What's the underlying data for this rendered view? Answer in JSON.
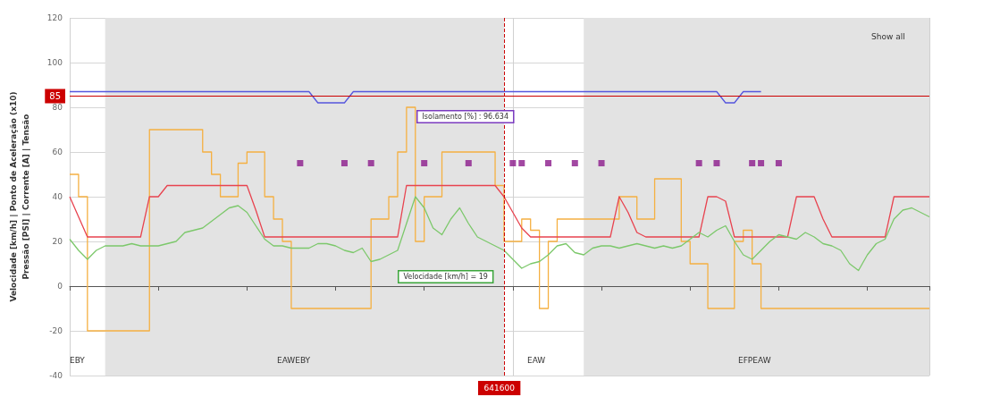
{
  "chart_data": {
    "type": "line",
    "ylabel": "Velocidade [km/h] | Ponto de Aceleração (x10)\nPressão [PSI] | Corrente [A] | Tensão",
    "categories": [
      null,
      null,
      null,
      null,
      null,
      null,
      null,
      null,
      null,
      null,
      null,
      null,
      null,
      null,
      null,
      null,
      null,
      null,
      null,
      null,
      null,
      null,
      null,
      null,
      null,
      null,
      null,
      null,
      null,
      null,
      null,
      null,
      null,
      null,
      null,
      null,
      null,
      null,
      null,
      null,
      null,
      null,
      null,
      null,
      null,
      null,
      null,
      null,
      null,
      null,
      null,
      null,
      null,
      null,
      null,
      null,
      null,
      null,
      null,
      null,
      null,
      null,
      null,
      null,
      null,
      null,
      null,
      null,
      null,
      null,
      null,
      null,
      null,
      null,
      null,
      null,
      null,
      null,
      null,
      null,
      null,
      null,
      null,
      null,
      null,
      null,
      null,
      null,
      null,
      null,
      null,
      null,
      null,
      null,
      null,
      null,
      null,
      null
    ],
    "series": [
      {
        "type": "step",
        "color": "#f5b041",
        "marker": "none",
        "values": [
          50,
          40,
          -20,
          -20,
          -20,
          -20,
          -20,
          -20,
          -20,
          70,
          70,
          70,
          70,
          70,
          70,
          60,
          50,
          40,
          40,
          55,
          60,
          60,
          40,
          30,
          20,
          -10,
          -10,
          -10,
          -10,
          -10,
          -10,
          -10,
          -10,
          -10,
          30,
          30,
          40,
          60,
          80,
          20,
          40,
          40,
          60,
          60,
          60,
          60,
          60,
          60,
          45,
          20,
          20,
          30,
          25,
          -10,
          20,
          30,
          30,
          30,
          30,
          30,
          30,
          30,
          40,
          40,
          30,
          30,
          48,
          48,
          48,
          20,
          10,
          10,
          -10,
          -10,
          -10,
          20,
          25,
          10,
          -10,
          -10,
          -10,
          -10,
          -10,
          -10,
          -10,
          -10,
          -10,
          -10,
          -10,
          -10,
          -10,
          -10,
          -10,
          -10,
          -10,
          -10,
          -10,
          -10
        ]
      },
      {
        "color": "#e8434f",
        "marker": "none",
        "values": [
          40,
          31,
          22,
          22,
          22,
          22,
          22,
          22,
          22,
          40,
          40,
          45,
          45,
          45,
          45,
          45,
          45,
          45,
          45,
          45,
          45,
          34,
          22,
          22,
          22,
          22,
          22,
          22,
          22,
          22,
          22,
          22,
          22,
          22,
          22,
          22,
          22,
          22,
          45,
          45,
          45,
          45,
          45,
          45,
          45,
          45,
          45,
          45,
          45,
          40,
          33,
          26,
          22,
          22,
          22,
          22,
          22,
          22,
          22,
          22,
          22,
          22,
          40,
          33,
          24,
          22,
          22,
          22,
          22,
          22,
          22,
          22,
          40,
          40,
          38,
          22,
          22,
          22,
          22,
          22,
          22,
          22,
          40,
          40,
          40,
          30,
          22,
          22,
          22,
          22,
          22,
          22,
          22,
          40,
          40,
          40,
          40,
          40
        ]
      },
      {
        "color": "#7cc86b",
        "marker": "none",
        "values": [
          21,
          16,
          12,
          16,
          18,
          18,
          18,
          19,
          18,
          18,
          18,
          19,
          20,
          24,
          25,
          26,
          29,
          32,
          35,
          36,
          33,
          27,
          21,
          18,
          18,
          17,
          17,
          17,
          19,
          19,
          18,
          16,
          15,
          17,
          11,
          12,
          14,
          16,
          28,
          40,
          35,
          26,
          23,
          30,
          35,
          28,
          22,
          20,
          18,
          16,
          12,
          8,
          10,
          11,
          14,
          18,
          19,
          15,
          14,
          17,
          18,
          18,
          17,
          18,
          19,
          18,
          17,
          18,
          17,
          18,
          21,
          24,
          22,
          25,
          27,
          20,
          14,
          12,
          16,
          20,
          23,
          22,
          21,
          24,
          22,
          19,
          18,
          16,
          10,
          7,
          14,
          19,
          21,
          30,
          34,
          35,
          33,
          31
        ]
      },
      {
        "color": "#5555dd",
        "marker": "none",
        "values": [
          87,
          87,
          87,
          87,
          87,
          87,
          87,
          87,
          87,
          87,
          87,
          87,
          87,
          87,
          87,
          87,
          87,
          87,
          87,
          87,
          87,
          87,
          87,
          87,
          87,
          87,
          87,
          87,
          82,
          82,
          82,
          82,
          87,
          87,
          87,
          87,
          87,
          87,
          87,
          87,
          87,
          87,
          87,
          87,
          87,
          87,
          87,
          87,
          87,
          87,
          87,
          87,
          87,
          87,
          87,
          87,
          87,
          87,
          87,
          87,
          87,
          87,
          87,
          87,
          87,
          87,
          87,
          87,
          87,
          87,
          87,
          87,
          87,
          87,
          82,
          82,
          87,
          87,
          87,
          null,
          null,
          null,
          null,
          null,
          null,
          null,
          null,
          null,
          null,
          null,
          null,
          null,
          null,
          null,
          null,
          null,
          null,
          null
        ]
      },
      {
        "type": "scatter",
        "color": "#8b1a8b",
        "marker": "square",
        "values": [
          null,
          null,
          null,
          null,
          null,
          null,
          null,
          null,
          null,
          null,
          null,
          null,
          null,
          null,
          null,
          null,
          null,
          null,
          null,
          null,
          null,
          null,
          null,
          null,
          null,
          null,
          55,
          null,
          null,
          null,
          null,
          55,
          null,
          null,
          55,
          null,
          null,
          null,
          null,
          null,
          55,
          null,
          null,
          null,
          null,
          55,
          null,
          null,
          null,
          null,
          55,
          55,
          null,
          null,
          55,
          null,
          null,
          55,
          null,
          null,
          55,
          null,
          null,
          null,
          null,
          null,
          null,
          null,
          null,
          null,
          null,
          55,
          null,
          55,
          null,
          null,
          null,
          55,
          55,
          null,
          55,
          null,
          null,
          null,
          null,
          null,
          null,
          null,
          null,
          null,
          null,
          null,
          null,
          null,
          null,
          null,
          null,
          null
        ]
      }
    ],
    "ylim": [
      -40,
      120
    ],
    "yticks": [
      -40,
      -20,
      0,
      20,
      40,
      60,
      80,
      100,
      120
    ],
    "grid": true,
    "ref_lines": [
      {
        "axis": "y",
        "value": 85,
        "label": "85",
        "color": "#cc0000"
      }
    ],
    "annotations": [
      "Isolamento [%] : 96.634",
      "Velocidade [km/h] = 19",
      "Show all",
      "EBY",
      "EAWEBY",
      "EAW",
      "EFPEAW",
      "641600"
    ]
  }
}
